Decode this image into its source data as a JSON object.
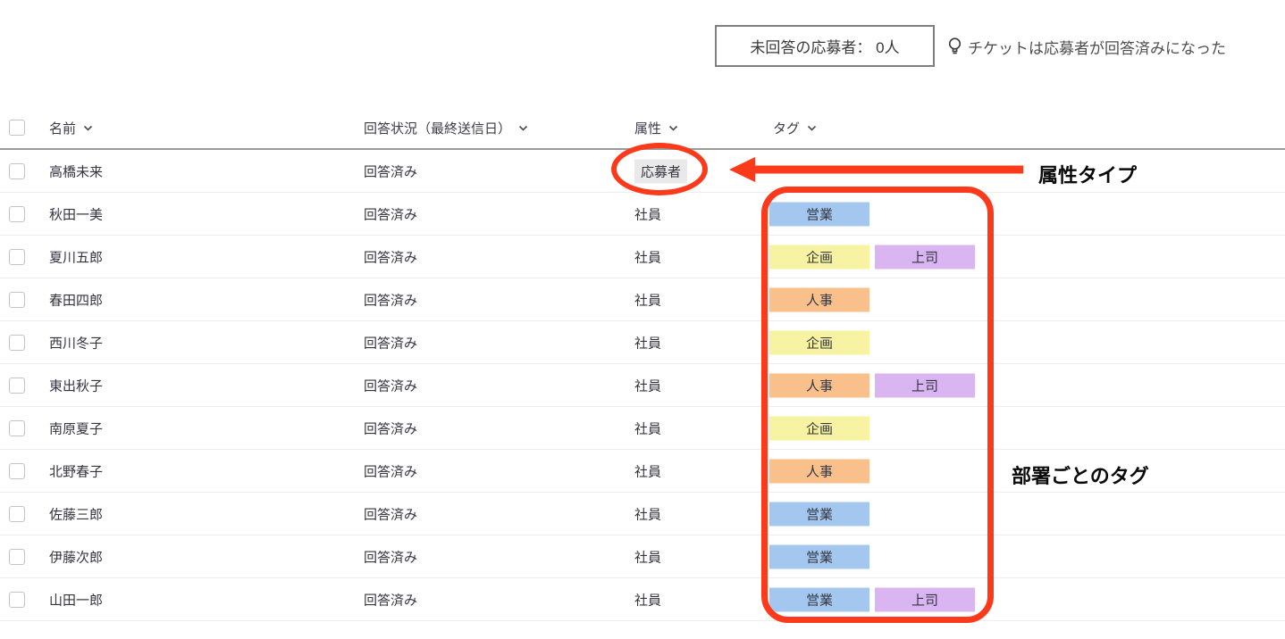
{
  "summary_box": {
    "label": "未回答の応募者： 0人"
  },
  "hint": {
    "icon": "lightbulb-icon",
    "text": "チケットは応募者が回答済みになった"
  },
  "table": {
    "columns": [
      {
        "label": "名前"
      },
      {
        "label": "回答状況（最終送信日）"
      },
      {
        "label": "属性"
      },
      {
        "label": "タグ"
      }
    ],
    "rows": [
      {
        "name": "高橋未来",
        "status": "回答済み",
        "attribute": "応募者",
        "badge": true,
        "tags": []
      },
      {
        "name": "秋田一美",
        "status": "回答済み",
        "attribute": "社員",
        "badge": false,
        "tags": [
          "営業"
        ]
      },
      {
        "name": "夏川五郎",
        "status": "回答済み",
        "attribute": "社員",
        "badge": false,
        "tags": [
          "企画",
          "上司"
        ]
      },
      {
        "name": "春田四郎",
        "status": "回答済み",
        "attribute": "社員",
        "badge": false,
        "tags": [
          "人事"
        ]
      },
      {
        "name": "西川冬子",
        "status": "回答済み",
        "attribute": "社員",
        "badge": false,
        "tags": [
          "企画"
        ]
      },
      {
        "name": "東出秋子",
        "status": "回答済み",
        "attribute": "社員",
        "badge": false,
        "tags": [
          "人事",
          "上司"
        ]
      },
      {
        "name": "南原夏子",
        "status": "回答済み",
        "attribute": "社員",
        "badge": false,
        "tags": [
          "企画"
        ]
      },
      {
        "name": "北野春子",
        "status": "回答済み",
        "attribute": "社員",
        "badge": false,
        "tags": [
          "人事"
        ]
      },
      {
        "name": "佐藤三郎",
        "status": "回答済み",
        "attribute": "社員",
        "badge": false,
        "tags": [
          "営業"
        ]
      },
      {
        "name": "伊藤次郎",
        "status": "回答済み",
        "attribute": "社員",
        "badge": false,
        "tags": [
          "営業"
        ]
      },
      {
        "name": "山田一郎",
        "status": "回答済み",
        "attribute": "社員",
        "badge": false,
        "tags": [
          "営業",
          "上司"
        ]
      }
    ]
  },
  "tag_colors": {
    "営業": "#a3c7ee",
    "企画": "#f7f3a2",
    "人事": "#f9c08c",
    "上司": "#d9b5f2"
  },
  "badge_bg": "#e9e9e9",
  "annotations": {
    "color": "#fa3a1b",
    "attribute_label": "属性タイプ",
    "tags_label": "部署ごとのタグ"
  }
}
